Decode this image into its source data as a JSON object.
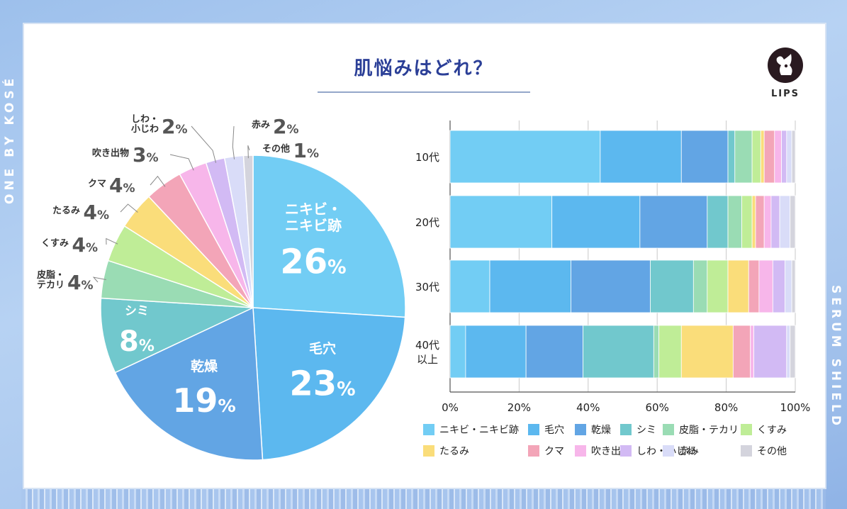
{
  "brand_left": "ONE BY KOSÉ",
  "brand_right": "SERUM SHIELD",
  "logo_text": "LIPS",
  "title": "肌悩みはどれ？",
  "colors": [
    "#72cdf4",
    "#5cb8ef",
    "#62a5e4",
    "#71c8cd",
    "#9adcb4",
    "#bfed97",
    "#fadd7a",
    "#f3a5b8",
    "#f7b6ea",
    "#d2baf4",
    "#d9dcf8",
    "#d4d4dd"
  ],
  "chart_data": [
    {
      "type": "pie",
      "title": "肌悩みはどれ？",
      "labels": [
        "ニキビ・ニキビ跡",
        "毛穴",
        "乾燥",
        "シミ",
        "皮脂・テカリ",
        "くすみ",
        "たるみ",
        "クマ",
        "吹き出物",
        "しわ・小じわ",
        "赤み",
        "その他"
      ],
      "display_labels": [
        {
          "lines": [
            "ニキビ・",
            "ニキビ跡"
          ],
          "pct": "26"
        },
        {
          "lines": [
            "毛穴"
          ],
          "pct": "23"
        },
        {
          "lines": [
            "乾燥"
          ],
          "pct": "19"
        },
        {
          "lines": [
            "シミ"
          ],
          "pct": "8"
        },
        {
          "lines": [
            "皮脂・",
            "テカリ"
          ],
          "pct": "4"
        },
        {
          "lines": [
            "くすみ"
          ],
          "pct": "4"
        },
        {
          "lines": [
            "たるみ"
          ],
          "pct": "4"
        },
        {
          "lines": [
            "クマ"
          ],
          "pct": "4"
        },
        {
          "lines": [
            "吹き出物"
          ],
          "pct": "3"
        },
        {
          "lines": [
            "しわ・",
            "小じわ"
          ],
          "pct": "2"
        },
        {
          "lines": [
            "赤み"
          ],
          "pct": "2"
        },
        {
          "lines": [
            "その他"
          ],
          "pct": "1"
        }
      ],
      "values": [
        26,
        23,
        19,
        8,
        4,
        4,
        4,
        4,
        3,
        2,
        2,
        1
      ],
      "unit": "%"
    },
    {
      "type": "bar",
      "orientation": "horizontal",
      "stacked": true,
      "categories": [
        [
          "10代"
        ],
        [
          "20代"
        ],
        [
          "30代"
        ],
        [
          "40代",
          "以上"
        ]
      ],
      "xlim": [
        0,
        100
      ],
      "xticks": [
        "0%",
        "20%",
        "40%",
        "60%",
        "80%",
        "100%"
      ],
      "grid": true,
      "legend_position": "bottom",
      "series": [
        {
          "name": "ニキビ・ニキビ跡",
          "values": [
            43.5,
            29.5,
            11.5,
            4.5
          ]
        },
        {
          "name": "毛穴",
          "values": [
            23.5,
            25.5,
            23.5,
            17.5
          ]
        },
        {
          "name": "乾燥",
          "values": [
            13.5,
            19.5,
            23.0,
            16.5
          ]
        },
        {
          "name": "シミ",
          "values": [
            2.0,
            6.0,
            12.5,
            20.5
          ]
        },
        {
          "name": "皮脂・テカリ",
          "values": [
            5.0,
            4.0,
            4.0,
            1.5
          ]
        },
        {
          "name": "くすみ",
          "values": [
            2.5,
            3.0,
            6.0,
            6.5
          ]
        },
        {
          "name": "たるみ",
          "values": [
            1.0,
            1.0,
            6.0,
            15.0
          ]
        },
        {
          "name": "クマ",
          "values": [
            3.0,
            2.5,
            3.0,
            5.0
          ]
        },
        {
          "name": "吹き出物",
          "values": [
            2.0,
            2.0,
            4.0,
            1.0
          ]
        },
        {
          "name": "しわ・小じわ",
          "values": [
            1.5,
            2.5,
            3.5,
            9.5
          ]
        },
        {
          "name": "赤み",
          "values": [
            1.5,
            3.0,
            2.0,
            1.0
          ]
        },
        {
          "name": "その他",
          "values": [
            1.0,
            1.5,
            1.0,
            1.5
          ]
        }
      ]
    }
  ]
}
